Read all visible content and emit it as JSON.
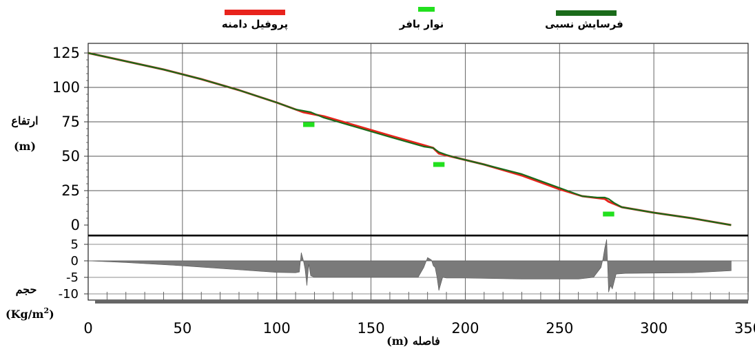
{
  "chart_data": [
    {
      "type": "line",
      "legend": {
        "placement": "top",
        "entries": [
          {
            "label": "پروفیل دامنه",
            "color": "#e8231c"
          },
          {
            "label": "نوار بافر",
            "color": "#22e01e"
          },
          {
            "label": "فرسایش نسبی",
            "color": "#1a6b1a"
          }
        ]
      },
      "ylabel_line1": "ارتفاع",
      "ylabel_line2": "(m)",
      "ylim": [
        0,
        125
      ],
      "xlim": [
        0,
        350
      ],
      "grid": true,
      "yticks": [
        0,
        25,
        50,
        75,
        100,
        125
      ],
      "series": [
        {
          "name": "پروفیل دامنه",
          "color": "#e8231c",
          "x": [
            0,
            20,
            40,
            60,
            80,
            100,
            110,
            114,
            125,
            140,
            160,
            178,
            183,
            186,
            195,
            210,
            230,
            250,
            262,
            274,
            276,
            283,
            300,
            320,
            341
          ],
          "y": [
            125,
            119,
            113,
            106,
            98,
            89,
            84,
            82,
            79,
            73,
            65,
            58,
            56,
            52,
            49,
            44,
            36,
            26,
            21,
            19,
            17,
            13,
            9,
            5,
            0
          ]
        },
        {
          "name": "فرسایش نسبی",
          "color": "#1a6b1a",
          "x": [
            0,
            20,
            40,
            60,
            80,
            100,
            110,
            114,
            118,
            125,
            140,
            160,
            178,
            183,
            186,
            190,
            195,
            210,
            230,
            250,
            262,
            270,
            274,
            276,
            279,
            283,
            300,
            320,
            341
          ],
          "y": [
            125,
            119,
            113,
            106,
            98,
            89,
            84,
            83,
            82,
            78,
            72,
            64,
            57,
            56,
            53,
            51,
            49,
            44,
            37,
            27,
            21,
            20,
            20,
            19,
            16,
            13,
            9,
            5,
            0
          ]
        }
      ],
      "buffer_strips": [
        {
          "x_start": 114,
          "x_end": 120,
          "y": 73
        },
        {
          "x_start": 183,
          "x_end": 189,
          "y": 44
        },
        {
          "x_start": 273,
          "x_end": 279,
          "y": 8
        }
      ]
    },
    {
      "type": "area",
      "ylabel_line1": "حجم",
      "ylabel_line2": "(Kg/m",
      "ylabel_sup": "2",
      "ylabel_close": ")",
      "xlabel_text": "فاصله",
      "xlabel_unit": "(m)",
      "ylim": [
        -10,
        7
      ],
      "xlim": [
        0,
        350
      ],
      "yticks": [
        -10,
        -5,
        0,
        5
      ],
      "xticks": [
        0,
        50,
        100,
        150,
        200,
        250,
        300,
        350
      ],
      "fill_color": "#7a7a7a",
      "series": [
        {
          "name": "",
          "x": [
            0,
            20,
            50,
            80,
            100,
            110,
            112,
            113,
            114,
            115,
            116,
            117,
            118,
            120,
            125,
            150,
            175,
            178,
            180,
            182,
            183,
            184,
            185,
            186,
            188,
            190,
            200,
            230,
            260,
            268,
            270,
            272,
            273,
            274,
            275,
            276,
            277,
            278,
            280,
            285,
            300,
            320,
            341
          ],
          "y": [
            0,
            -0.5,
            -1.5,
            -2.7,
            -3.5,
            -3.6,
            -3.4,
            2.5,
            0.5,
            -2.5,
            -7.5,
            -1,
            -4.5,
            -5,
            -5,
            -5,
            -5,
            -2,
            1,
            0.3,
            -1.5,
            -2,
            -5,
            -9,
            -5,
            -5.2,
            -5.2,
            -5.5,
            -5.5,
            -5,
            -3.5,
            -2,
            0.5,
            4,
            6.5,
            -9.5,
            -7.5,
            -8.5,
            -4,
            -3.8,
            -3.7,
            -3.6,
            -3
          ]
        }
      ]
    }
  ]
}
